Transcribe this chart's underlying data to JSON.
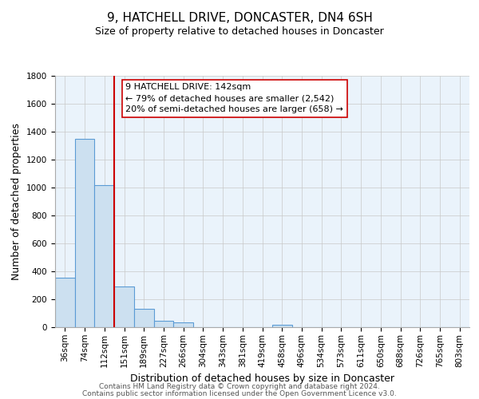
{
  "title": "9, HATCHELL DRIVE, DONCASTER, DN4 6SH",
  "subtitle": "Size of property relative to detached houses in Doncaster",
  "xlabel": "Distribution of detached houses by size in Doncaster",
  "ylabel": "Number of detached properties",
  "bar_labels": [
    "36sqm",
    "74sqm",
    "112sqm",
    "151sqm",
    "189sqm",
    "227sqm",
    "266sqm",
    "304sqm",
    "343sqm",
    "381sqm",
    "419sqm",
    "458sqm",
    "496sqm",
    "534sqm",
    "573sqm",
    "611sqm",
    "650sqm",
    "688sqm",
    "726sqm",
    "765sqm",
    "803sqm"
  ],
  "bar_values": [
    355,
    1350,
    1015,
    290,
    130,
    45,
    35,
    0,
    0,
    0,
    0,
    20,
    0,
    0,
    0,
    0,
    0,
    0,
    0,
    0,
    0
  ],
  "bar_color": "#cce0f0",
  "bar_edge_color": "#5b9bd5",
  "ylim": [
    0,
    1800
  ],
  "yticks": [
    0,
    200,
    400,
    600,
    800,
    1000,
    1200,
    1400,
    1600,
    1800
  ],
  "vline_x": 2.5,
  "vline_color": "#cc0000",
  "annotation_title": "9 HATCHELL DRIVE: 142sqm",
  "annotation_line1": "← 79% of detached houses are smaller (2,542)",
  "annotation_line2": "20% of semi-detached houses are larger (658) →",
  "footer1": "Contains HM Land Registry data © Crown copyright and database right 2024.",
  "footer2": "Contains public sector information licensed under the Open Government Licence v3.0.",
  "bg_color": "#eaf3fb",
  "grid_color": "#c8c8c8",
  "title_fontsize": 11,
  "subtitle_fontsize": 9,
  "axis_label_fontsize": 9,
  "tick_fontsize": 7.5,
  "annotation_fontsize": 8,
  "footer_fontsize": 6.5
}
